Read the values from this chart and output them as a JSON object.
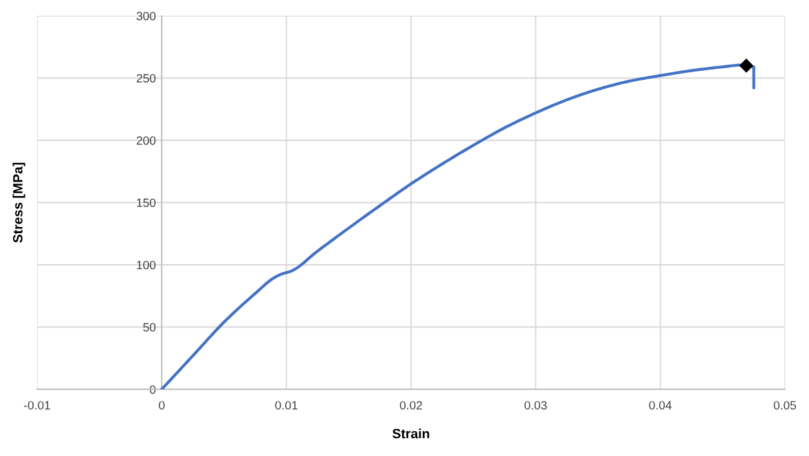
{
  "chart_data": {
    "type": "line",
    "xlabel": "Strain",
    "ylabel": "Stress [MPa]",
    "xlim": [
      -0.01,
      0.05
    ],
    "ylim": [
      0,
      300
    ],
    "xticks": [
      -0.01,
      0,
      0.01,
      0.02,
      0.03,
      0.04,
      0.05
    ],
    "yticks": [
      0,
      50,
      100,
      150,
      200,
      250,
      300
    ],
    "grid": true,
    "line_style": "solid",
    "series": [
      {
        "color": "#4472c4",
        "marker": "none",
        "x": [
          0,
          0.0025,
          0.005,
          0.0075,
          0.009,
          0.0096,
          0.0104,
          0.0125,
          0.015,
          0.0175,
          0.02,
          0.0225,
          0.025,
          0.0275,
          0.03,
          0.0325,
          0.035,
          0.0375,
          0.04,
          0.0425,
          0.045,
          0.0466,
          0.0475,
          0.0475
        ],
        "values": [
          0,
          27,
          54,
          77,
          89.5,
          92.5,
          95,
          111,
          129.5,
          147.5,
          165,
          181,
          196,
          210,
          222,
          232.5,
          241,
          247.5,
          252,
          256,
          259,
          260.5,
          259,
          242
        ]
      },
      {
        "type": "scatter",
        "color": "#000000",
        "marker": "diamond",
        "x": [
          0.0469
        ],
        "values": [
          260
        ]
      }
    ]
  }
}
